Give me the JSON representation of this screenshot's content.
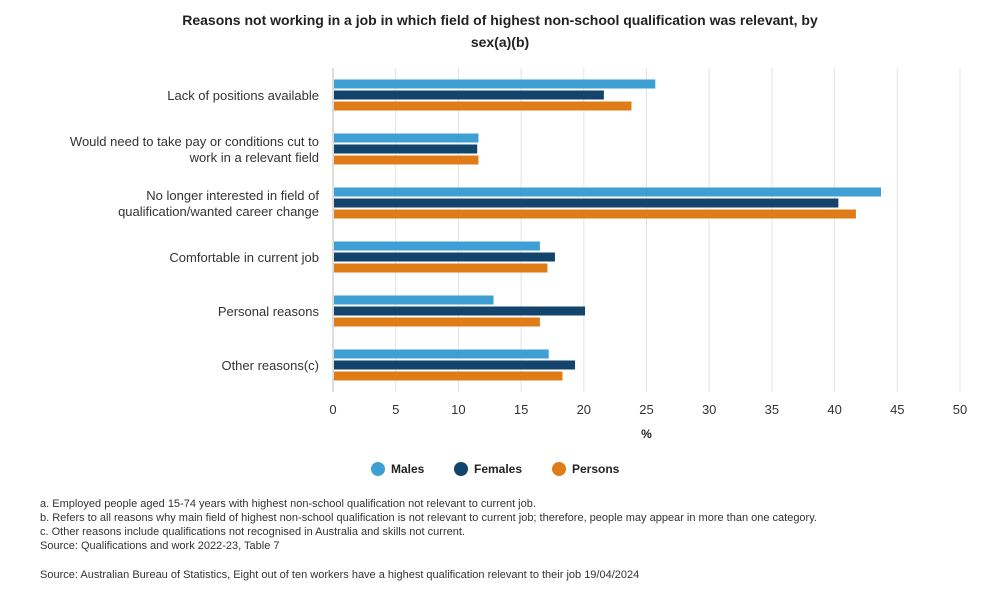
{
  "title_line1": "Reasons not working in a job in which field of highest non-school qualification was relevant, by",
  "title_line2": "sex(a)(b)",
  "chart_data": {
    "type": "bar",
    "orientation": "horizontal",
    "title": "Reasons not working in a job in which field of highest non-school qualification was relevant, by sex(a)(b)",
    "categories": [
      "Lack of positions available",
      "Would need to take pay or conditions cut to work in a relevant field",
      "No longer interested in field of qualification/wanted career change",
      "Comfortable in current job",
      "Personal reasons",
      "Other reasons(c)"
    ],
    "category_lines": [
      [
        "Lack of positions available"
      ],
      [
        "Would need to take pay or conditions cut to",
        "work in a relevant field"
      ],
      [
        "No longer interested in field of",
        "qualification/wanted career change"
      ],
      [
        "Comfortable in current job"
      ],
      [
        "Personal reasons"
      ],
      [
        "Other reasons(c)"
      ]
    ],
    "series": [
      {
        "name": "Males",
        "color": "#3d9fd4",
        "values": [
          25.7,
          11.6,
          43.7,
          16.5,
          12.8,
          17.2
        ]
      },
      {
        "name": "Females",
        "color": "#13446c",
        "values": [
          21.6,
          11.5,
          40.3,
          17.7,
          20.1,
          19.3
        ]
      },
      {
        "name": "Persons",
        "color": "#e07c17",
        "values": [
          23.8,
          11.6,
          41.7,
          17.1,
          16.5,
          18.3
        ]
      }
    ],
    "xlabel": "%",
    "ylabel": "",
    "xlim": [
      0,
      50
    ],
    "xticks": [
      0,
      5,
      10,
      15,
      20,
      25,
      30,
      35,
      40,
      45,
      50
    ],
    "grid": true,
    "legend_position": "bottom"
  },
  "notes": [
    "a. Employed people aged 15-74 years with highest non-school qualification not relevant to current job.",
    "b. Refers to all reasons why main field of highest non-school qualification is not relevant to current job; therefore, people may appear in more than one category.",
    "c. Other reasons include qualifications not recognised in Australia and skills not current.",
    "Source: Qualifications and work 2022-23, Table 7"
  ],
  "source": "Source: Australian Bureau of Statistics, Eight out of ten workers have a highest qualification relevant to their job 19/04/2024"
}
